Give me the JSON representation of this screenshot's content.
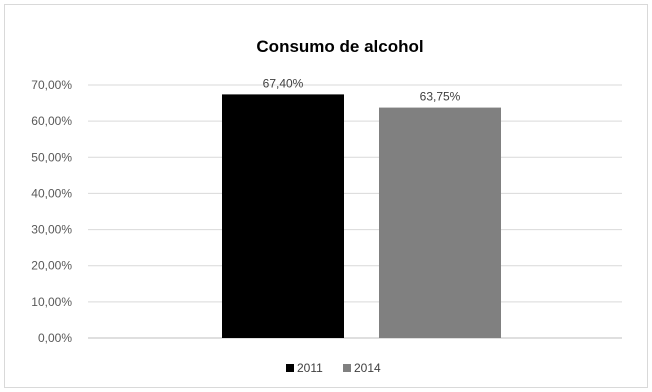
{
  "chart_data": {
    "type": "bar",
    "title": "Consumo de alcohol",
    "xlabel": "",
    "ylabel": "",
    "ylim": [
      0,
      70
    ],
    "yticks": [
      0,
      10,
      20,
      30,
      40,
      50,
      60,
      70
    ],
    "ytick_labels": [
      "0,00%",
      "10,00%",
      "20,00%",
      "30,00%",
      "40,00%",
      "50,00%",
      "60,00%",
      "70,00%"
    ],
    "grid": true,
    "legend": "bottom",
    "series": [
      {
        "name": "2011",
        "values": [
          67.4
        ],
        "label": "67,40%",
        "color": "#000000"
      },
      {
        "name": "2014",
        "values": [
          63.75
        ],
        "label": "63,75%",
        "color": "#808080"
      }
    ]
  }
}
